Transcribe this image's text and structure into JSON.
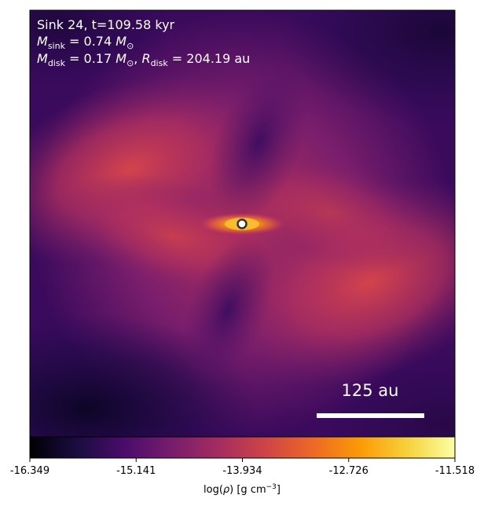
{
  "annotation": {
    "line1": "Sink 24, t=109.58 kyr",
    "line2_prefix": "M",
    "line2_sub": "sink",
    "line2_eq": " = 0.74 ",
    "line2_unit": "M",
    "line2_unit_sub": "⊙",
    "line3_prefix": "M",
    "line3_sub": "disk",
    "line3_eq": " = 0.17 ",
    "line3_unit": "M",
    "line3_unit_sub": "⊙",
    "line3_sep": ", ",
    "line3_r": "R",
    "line3_r_sub": "disk",
    "line3_r_eq": " = 204.19 au"
  },
  "scalebar": {
    "label": "125 au"
  },
  "colorbar": {
    "ticks": [
      "-16.349",
      "-15.141",
      "-13.934",
      "-12.726",
      "-11.518"
    ],
    "label_prefix": "log(",
    "label_rho": "ρ",
    "label_mid": ") [g cm",
    "label_sup": "−3",
    "label_end": "]",
    "colormap": "inferno",
    "colors": [
      "#000004",
      "#1b0c41",
      "#4a0c6b",
      "#781c6d",
      "#a52c60",
      "#cf4446",
      "#ed6925",
      "#fb9b06",
      "#f7d13d",
      "#fcffa4"
    ]
  },
  "sink_marker": {
    "fill": "#ffffff",
    "stroke": "#333333"
  }
}
